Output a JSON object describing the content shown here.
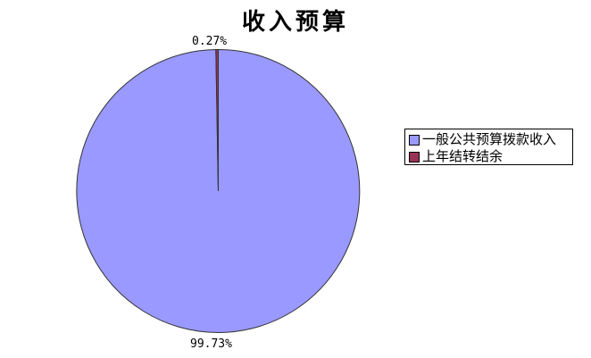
{
  "chart_data": {
    "type": "pie",
    "title": "收入预算",
    "slices": [
      {
        "label": "一般公共预算拨款收入",
        "value": 99.73,
        "display": "99.73%",
        "color": "#9999FF"
      },
      {
        "label": "上年结转结余",
        "value": 0.27,
        "display": "0.27%",
        "color": "#993355"
      }
    ],
    "start_angle_deg": 90,
    "direction": "clockwise",
    "outline_color": "#333333",
    "background": "#FFFFFF",
    "legend_position": "right",
    "legend_border_color": "#000000"
  }
}
